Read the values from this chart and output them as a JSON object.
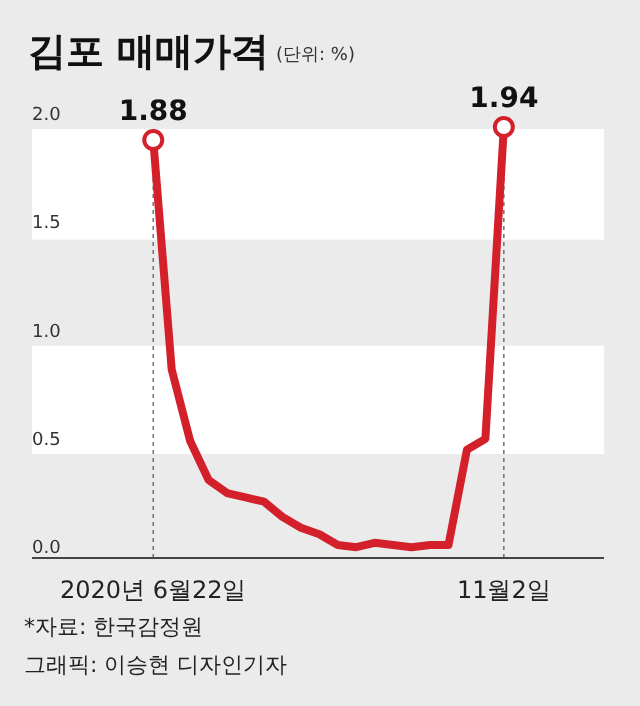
{
  "chart_data": {
    "type": "line",
    "title": "김포 매매가격",
    "subtitle": "(단위: %)",
    "x": [
      "2020-06-22",
      "2020-06-29",
      "2020-07-06",
      "2020-07-13",
      "2020-07-20",
      "2020-07-27",
      "2020-08-03",
      "2020-08-10",
      "2020-08-17",
      "2020-08-24",
      "2020-08-31",
      "2020-09-07",
      "2020-09-14",
      "2020-09-21",
      "2020-09-28",
      "2020-10-05",
      "2020-10-12",
      "2020-10-19",
      "2020-10-26",
      "2020-11-02"
    ],
    "series": [
      {
        "color": "#d3202b",
        "values": [
          1.88,
          0.82,
          0.49,
          0.31,
          0.25,
          0.23,
          0.21,
          0.14,
          0.09,
          0.06,
          0.01,
          0.0,
          0.02,
          0.01,
          0.0,
          0.01,
          0.01,
          0.45,
          0.5,
          1.94
        ],
        "value_labels": [
          "1.88",
          null,
          null,
          null,
          null,
          null,
          null,
          null,
          null,
          null,
          null,
          null,
          null,
          null,
          null,
          null,
          null,
          null,
          null,
          "1.94"
        ]
      }
    ],
    "line_style": "solid",
    "xlim": [
      "2020-05-07",
      "2020-12-10"
    ],
    "xticks": [
      {
        "value": "2020-06-22",
        "label": "2020년 6월22일"
      },
      {
        "value": "2020-11-02",
        "label": "11월2일"
      }
    ],
    "ylim": [
      -0.05,
      2.0
    ],
    "yticks": [
      {
        "value": 0,
        "label": "0.0"
      },
      {
        "value": 0.5,
        "label": "0.5"
      },
      {
        "value": 1.0,
        "label": "1.0"
      },
      {
        "value": 1.5,
        "label": "1.5"
      },
      {
        "value": 2.0,
        "label": "2.0"
      }
    ],
    "bands": [
      {
        "axis": "y",
        "from": 0.43,
        "to": 0.93,
        "color": "#ffffff"
      },
      {
        "axis": "y",
        "from": 1.42,
        "to": 1.93,
        "color": "#ffffff"
      }
    ],
    "ref_lines": [
      {
        "axis": "x",
        "value": "2020-06-22",
        "line_style": "dotted",
        "color": "#777777"
      },
      {
        "axis": "x",
        "value": "2020-11-02",
        "line_style": "dotted",
        "color": "#777777"
      }
    ],
    "grid": false,
    "annotations": [
      "*자료: 한국감정원",
      "그래픽: 이승현 디자인기자"
    ]
  }
}
